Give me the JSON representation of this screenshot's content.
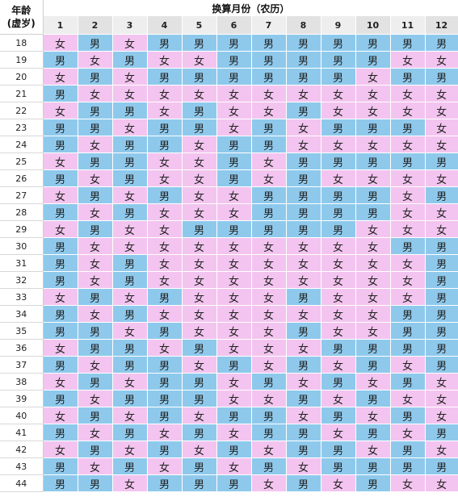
{
  "header": {
    "corner_line1": "年龄",
    "corner_line2": "(虚岁)",
    "title": "换算月份（农历）"
  },
  "legend_colors": {
    "男": "#8ec9ec",
    "女": "#f3c4ef"
  },
  "months": [
    "1",
    "2",
    "3",
    "4",
    "5",
    "6",
    "7",
    "8",
    "9",
    "10",
    "11",
    "12"
  ],
  "rows": [
    {
      "age": "18",
      "cells": [
        "女",
        "男",
        "女",
        "男",
        "男",
        "男",
        "男",
        "男",
        "男",
        "男",
        "男",
        "男"
      ]
    },
    {
      "age": "19",
      "cells": [
        "男",
        "女",
        "男",
        "女",
        "女",
        "男",
        "男",
        "男",
        "男",
        "男",
        "女",
        "女"
      ]
    },
    {
      "age": "20",
      "cells": [
        "女",
        "男",
        "女",
        "男",
        "男",
        "男",
        "男",
        "男",
        "男",
        "女",
        "男",
        "男"
      ]
    },
    {
      "age": "21",
      "cells": [
        "男",
        "女",
        "女",
        "女",
        "女",
        "女",
        "女",
        "女",
        "女",
        "女",
        "女",
        "女"
      ]
    },
    {
      "age": "22",
      "cells": [
        "女",
        "男",
        "男",
        "女",
        "男",
        "女",
        "女",
        "男",
        "女",
        "女",
        "女",
        "女"
      ]
    },
    {
      "age": "23",
      "cells": [
        "男",
        "男",
        "女",
        "男",
        "男",
        "女",
        "男",
        "女",
        "男",
        "男",
        "男",
        "女"
      ]
    },
    {
      "age": "24",
      "cells": [
        "男",
        "女",
        "男",
        "男",
        "女",
        "男",
        "男",
        "女",
        "女",
        "女",
        "女",
        "女"
      ]
    },
    {
      "age": "25",
      "cells": [
        "女",
        "男",
        "男",
        "女",
        "女",
        "男",
        "女",
        "男",
        "男",
        "男",
        "男",
        "男"
      ]
    },
    {
      "age": "26",
      "cells": [
        "男",
        "女",
        "男",
        "女",
        "女",
        "男",
        "女",
        "男",
        "女",
        "女",
        "女",
        "女"
      ]
    },
    {
      "age": "27",
      "cells": [
        "女",
        "男",
        "女",
        "男",
        "女",
        "女",
        "男",
        "男",
        "男",
        "男",
        "女",
        "男"
      ]
    },
    {
      "age": "28",
      "cells": [
        "男",
        "女",
        "男",
        "女",
        "女",
        "女",
        "男",
        "男",
        "男",
        "男",
        "女",
        "女"
      ]
    },
    {
      "age": "29",
      "cells": [
        "女",
        "男",
        "女",
        "女",
        "男",
        "男",
        "男",
        "男",
        "男",
        "女",
        "女",
        "女"
      ]
    },
    {
      "age": "30",
      "cells": [
        "男",
        "女",
        "女",
        "女",
        "女",
        "女",
        "女",
        "女",
        "女",
        "女",
        "男",
        "男"
      ]
    },
    {
      "age": "31",
      "cells": [
        "男",
        "女",
        "男",
        "女",
        "女",
        "女",
        "女",
        "女",
        "女",
        "女",
        "女",
        "男"
      ]
    },
    {
      "age": "32",
      "cells": [
        "男",
        "女",
        "男",
        "女",
        "女",
        "女",
        "女",
        "女",
        "女",
        "女",
        "女",
        "男"
      ]
    },
    {
      "age": "33",
      "cells": [
        "女",
        "男",
        "女",
        "男",
        "女",
        "女",
        "女",
        "男",
        "女",
        "女",
        "女",
        "男"
      ]
    },
    {
      "age": "34",
      "cells": [
        "男",
        "女",
        "男",
        "女",
        "女",
        "女",
        "女",
        "女",
        "女",
        "女",
        "男",
        "男"
      ]
    },
    {
      "age": "35",
      "cells": [
        "男",
        "男",
        "女",
        "男",
        "女",
        "女",
        "女",
        "男",
        "女",
        "女",
        "男",
        "男"
      ]
    },
    {
      "age": "36",
      "cells": [
        "女",
        "男",
        "男",
        "女",
        "男",
        "女",
        "女",
        "女",
        "男",
        "男",
        "男",
        "男"
      ]
    },
    {
      "age": "37",
      "cells": [
        "男",
        "女",
        "男",
        "男",
        "女",
        "男",
        "女",
        "男",
        "女",
        "男",
        "女",
        "男"
      ]
    },
    {
      "age": "38",
      "cells": [
        "女",
        "男",
        "女",
        "男",
        "男",
        "女",
        "男",
        "女",
        "男",
        "女",
        "男",
        "女"
      ]
    },
    {
      "age": "39",
      "cells": [
        "男",
        "女",
        "男",
        "男",
        "男",
        "女",
        "女",
        "男",
        "女",
        "男",
        "女",
        "女"
      ]
    },
    {
      "age": "40",
      "cells": [
        "女",
        "男",
        "女",
        "男",
        "女",
        "男",
        "男",
        "女",
        "男",
        "女",
        "男",
        "女"
      ]
    },
    {
      "age": "41",
      "cells": [
        "男",
        "女",
        "男",
        "女",
        "男",
        "女",
        "男",
        "男",
        "女",
        "男",
        "女",
        "男"
      ]
    },
    {
      "age": "42",
      "cells": [
        "女",
        "男",
        "女",
        "男",
        "女",
        "男",
        "女",
        "男",
        "男",
        "女",
        "男",
        "女"
      ]
    },
    {
      "age": "43",
      "cells": [
        "男",
        "女",
        "男",
        "女",
        "男",
        "女",
        "男",
        "女",
        "男",
        "男",
        "男",
        "男"
      ]
    },
    {
      "age": "44",
      "cells": [
        "男",
        "男",
        "女",
        "男",
        "男",
        "男",
        "女",
        "男",
        "女",
        "男",
        "女",
        "女"
      ]
    }
  ]
}
